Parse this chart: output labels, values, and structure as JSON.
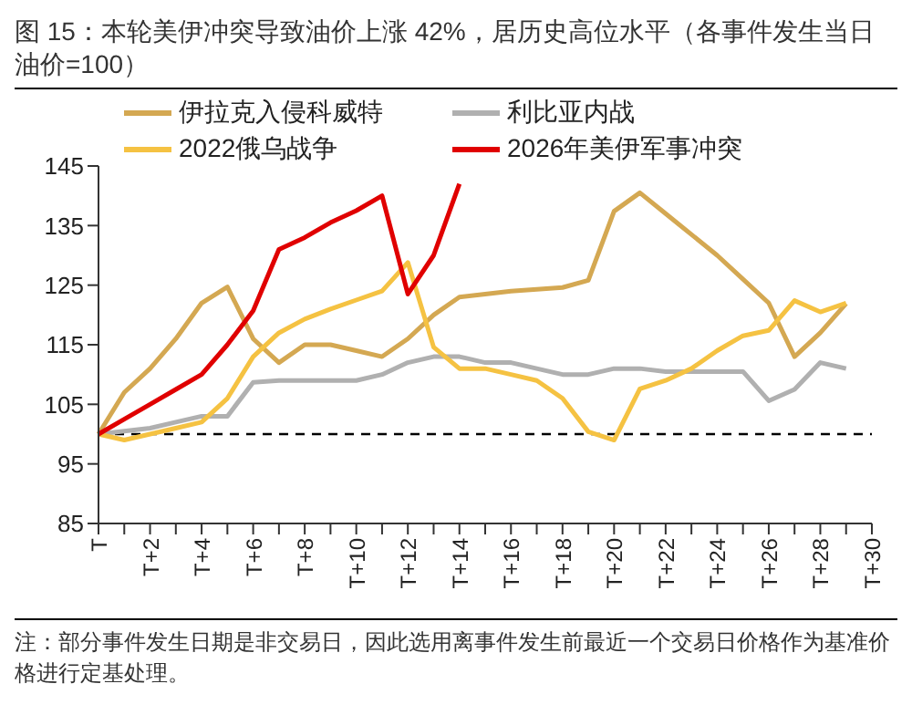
{
  "chart_data": {
    "type": "line",
    "title": "图 15：本轮美伊冲突导致油价上涨 42%，居历史高位水平（各事件发生当日油价=100）",
    "annotations": [
      "注：部分事件发生日期是非交易日，因此选用离事件发生前最近一个交易日价格作为基准价格进行定基处理。"
    ],
    "categories": [
      "T",
      null,
      "T+2",
      null,
      "T+4",
      null,
      "T+6",
      null,
      "T+8",
      null,
      "T+10",
      null,
      "T+12",
      null,
      "T+14",
      null,
      "T+16",
      null,
      "T+18",
      null,
      "T+20",
      null,
      "T+22",
      null,
      "T+24",
      null,
      "T+26",
      null,
      "T+28",
      null,
      "T+30"
    ],
    "series": [
      {
        "name": "伊拉克入侵科威特",
        "color": "#d4a852",
        "values": [
          100,
          107,
          111,
          116,
          122,
          124.7,
          116,
          112,
          115,
          115,
          114,
          113,
          116,
          120,
          123,
          123.5,
          124,
          124.3,
          124.6,
          125.8,
          137.4,
          140.5,
          137,
          133.5,
          130,
          126,
          122,
          113,
          117,
          121.9,
          null
        ]
      },
      {
        "name": "利比亚内战",
        "color": "#b0b0b0",
        "values": [
          100,
          100.5,
          101,
          102,
          103,
          103,
          108.7,
          109,
          109,
          109,
          109,
          110,
          112,
          113,
          113,
          112,
          112,
          111,
          110,
          110,
          111,
          111,
          110.5,
          110.5,
          110.5,
          110.5,
          105.6,
          107.5,
          112,
          111,
          null
        ]
      },
      {
        "name": "2022俄乌战争",
        "color": "#f5c242",
        "values": [
          100,
          99,
          100,
          101,
          102,
          106,
          113,
          117,
          119.3,
          121,
          122.5,
          124,
          128.8,
          114.6,
          111,
          111,
          110,
          109,
          106,
          100.4,
          99,
          107.6,
          109,
          111,
          114,
          116.5,
          117.4,
          122.4,
          120.5,
          122,
          null
        ]
      },
      {
        "name": "2026年美伊军事冲突",
        "color": "#e00000",
        "values": [
          100,
          102.5,
          105,
          107.5,
          110,
          115,
          120.7,
          131,
          133,
          135.5,
          137.5,
          140,
          123.5,
          130,
          142,
          null,
          null,
          null,
          null,
          null,
          null,
          null,
          null,
          null,
          null,
          null,
          null,
          null,
          null,
          null,
          null
        ]
      }
    ],
    "ylim": [
      85,
      145
    ],
    "yticks": [
      85,
      95,
      105,
      115,
      125,
      135,
      145
    ],
    "ref_lines": [
      {
        "axis": "y",
        "value": 100,
        "color": "#000000",
        "line_style": "dashed"
      }
    ],
    "grid": false,
    "legend": "top",
    "marker": "none",
    "line_style": "solid"
  }
}
